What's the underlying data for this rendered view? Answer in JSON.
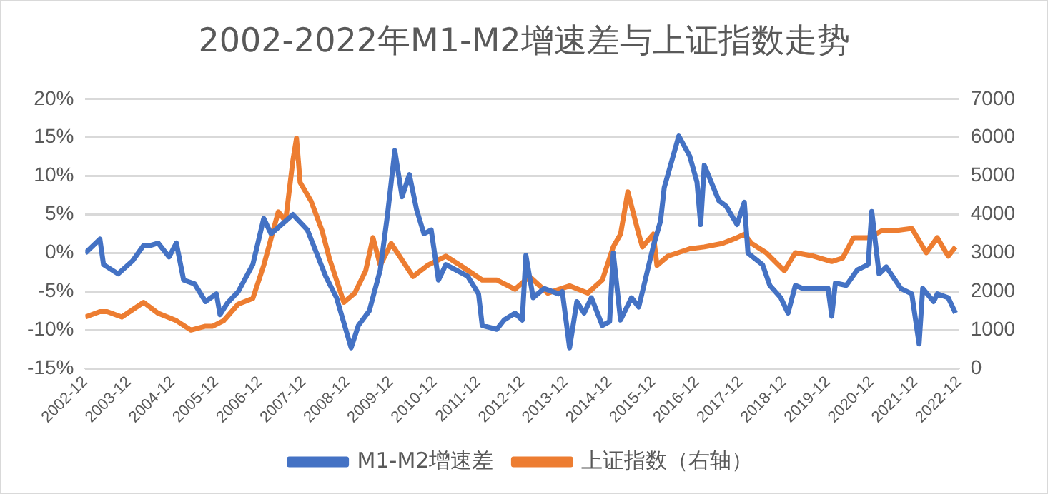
{
  "chart_data": {
    "type": "line",
    "title": "2002-2022年M1-M2增速差与上证指数走势",
    "series": [
      {
        "name": "M1-M2增速差",
        "color": "#4472c4",
        "x": [
          "2002-12",
          "2003-04",
          "2003-05",
          "2003-09",
          "2004-01",
          "2004-04",
          "2004-06",
          "2004-08",
          "2004-11",
          "2005-01",
          "2005-03",
          "2005-06",
          "2005-09",
          "2005-12",
          "2006-01",
          "2006-03",
          "2006-06",
          "2006-10",
          "2007-01",
          "2007-03",
          "2007-09",
          "2008-01",
          "2008-02",
          "2008-06",
          "2008-09",
          "2009-01",
          "2009-03",
          "2009-06",
          "2009-09",
          "2009-11",
          "2010-01",
          "2010-03",
          "2010-05",
          "2010-07",
          "2010-09",
          "2010-11",
          "2011-01",
          "2011-03",
          "2011-09",
          "2011-12",
          "2012-01",
          "2012-05",
          "2012-07",
          "2012-10",
          "2012-12",
          "2013-01",
          "2013-03",
          "2013-06",
          "2013-10",
          "2013-11",
          "2014-01",
          "2014-03",
          "2014-05",
          "2014-07",
          "2014-10",
          "2014-12",
          "2015-01",
          "2015-03",
          "2015-06",
          "2015-08",
          "2015-12",
          "2016-02",
          "2016-03",
          "2016-07",
          "2016-10",
          "2016-12",
          "2017-01",
          "2017-02",
          "2017-06",
          "2017-08",
          "2017-11",
          "2018-01",
          "2018-02",
          "2018-06",
          "2018-08",
          "2018-11",
          "2019-01",
          "2019-03",
          "2019-05",
          "2019-09",
          "2019-12",
          "2020-01",
          "2020-02",
          "2020-05",
          "2020-08",
          "2020-11",
          "2020-12",
          "2021-02",
          "2021-04",
          "2021-08",
          "2021-11",
          "2022-01",
          "2022-02",
          "2022-05",
          "2022-06",
          "2022-09",
          "2022-11"
        ],
        "values": [
          0,
          1.8,
          -1.5,
          -2.7,
          -1,
          1,
          1,
          1.3,
          -0.5,
          1.3,
          -3.5,
          -4,
          -6.3,
          -5.3,
          -8,
          -6.5,
          -5,
          -1.5,
          4.5,
          2.5,
          5,
          3,
          1.8,
          -3,
          -5.8,
          -12.3,
          -9.4,
          -7.5,
          -2.2,
          5,
          13.3,
          7.3,
          10.2,
          5.6,
          2.5,
          3,
          -3.5,
          -1.5,
          -3,
          -5.3,
          -9.4,
          -9.9,
          -8.7,
          -7.8,
          -8.7,
          -0.3,
          -5.8,
          -4.6,
          -5.3,
          -5,
          -12.3,
          -6.3,
          -7.8,
          -5.8,
          -9.4,
          -8.9,
          0,
          -8.7,
          -5.8,
          -7,
          0.9,
          4.2,
          8.5,
          15.2,
          12.6,
          9.2,
          3.7,
          11.4,
          6.8,
          6.1,
          3.7,
          6.6,
          0,
          -1.5,
          -4.2,
          -5.8,
          -7.8,
          -4.2,
          -4.6,
          -4.6,
          -4.6,
          -8.2,
          -3.9,
          -4.2,
          -2.2,
          -1.5,
          5.4,
          -2.7,
          -1.8,
          -4.6,
          -5.3,
          -11.8,
          -4.6,
          -6.3,
          -5.3,
          -5.8,
          -7.8
        ]
      },
      {
        "name": "上证指数（右轴）",
        "color": "#ed7d31",
        "axis": "y2",
        "x": [
          "2002-12",
          "2003-04",
          "2003-06",
          "2003-10",
          "2004-04",
          "2004-08",
          "2005-01",
          "2005-05",
          "2005-09",
          "2005-11",
          "2006-02",
          "2006-06",
          "2006-10",
          "2007-01",
          "2007-05",
          "2007-07",
          "2007-09",
          "2007-10",
          "2007-11",
          "2008-02",
          "2008-05",
          "2008-07",
          "2008-11",
          "2009-02",
          "2009-05",
          "2009-07",
          "2009-09",
          "2009-12",
          "2010-06",
          "2010-10",
          "2011-03",
          "2011-07",
          "2012-01",
          "2012-05",
          "2012-10",
          "2013-02",
          "2013-07",
          "2014-01",
          "2014-06",
          "2014-10",
          "2015-01",
          "2015-03",
          "2015-05",
          "2015-08",
          "2015-09",
          "2015-12",
          "2016-01",
          "2016-04",
          "2016-10",
          "2017-02",
          "2017-07",
          "2017-11",
          "2018-01",
          "2018-03",
          "2018-07",
          "2018-12",
          "2019-03",
          "2019-08",
          "2020-01",
          "2020-04",
          "2020-07",
          "2020-11",
          "2021-03",
          "2021-07",
          "2021-11",
          "2022-03",
          "2022-06",
          "2022-09",
          "2022-11"
        ],
        "values": [
          1340,
          1480,
          1480,
          1340,
          1720,
          1435,
          1245,
          1000,
          1100,
          1100,
          1245,
          1675,
          1820,
          2680,
          4070,
          3830,
          5400,
          5980,
          4830,
          4350,
          3590,
          2870,
          1720,
          1960,
          2540,
          3400,
          2680,
          3250,
          2390,
          2680,
          2920,
          2680,
          2300,
          2300,
          2060,
          2390,
          1960,
          2150,
          1960,
          2300,
          3160,
          3490,
          4590,
          3490,
          3160,
          3490,
          2680,
          2920,
          3110,
          3160,
          3250,
          3400,
          3490,
          3250,
          3010,
          2540,
          3010,
          2920,
          2780,
          2870,
          3400,
          3400,
          3590,
          3590,
          3640,
          3010,
          3400,
          2920,
          3160
        ]
      }
    ],
    "xlim": [
      "2002-12",
      "2022-12"
    ],
    "xticks": [
      "2002-12",
      "2003-12",
      "2004-12",
      "2005-12",
      "2006-12",
      "2007-12",
      "2008-12",
      "2009-12",
      "2010-12",
      "2011-12",
      "2012-12",
      "2013-12",
      "2014-12",
      "2015-12",
      "2016-12",
      "2017-12",
      "2018-12",
      "2019-12",
      "2020-12",
      "2021-12",
      "2022-12"
    ],
    "ylim": [
      -15,
      20
    ],
    "yticks": [
      {
        "value": -15,
        "label": "-15%"
      },
      {
        "value": -10,
        "label": "-10%"
      },
      {
        "value": -5,
        "label": "-5%"
      },
      {
        "value": 0,
        "label": "0%"
      },
      {
        "value": 5,
        "label": "5%"
      },
      {
        "value": 10,
        "label": "10%"
      },
      {
        "value": 15,
        "label": "15%"
      },
      {
        "value": 20,
        "label": "20%"
      }
    ],
    "y2lim": [
      0,
      7000
    ],
    "y2ticks": [
      0,
      1000,
      2000,
      3000,
      4000,
      5000,
      6000,
      7000
    ],
    "grid": "y",
    "legend": "bottom",
    "marker": "none",
    "line_style": "solid"
  }
}
